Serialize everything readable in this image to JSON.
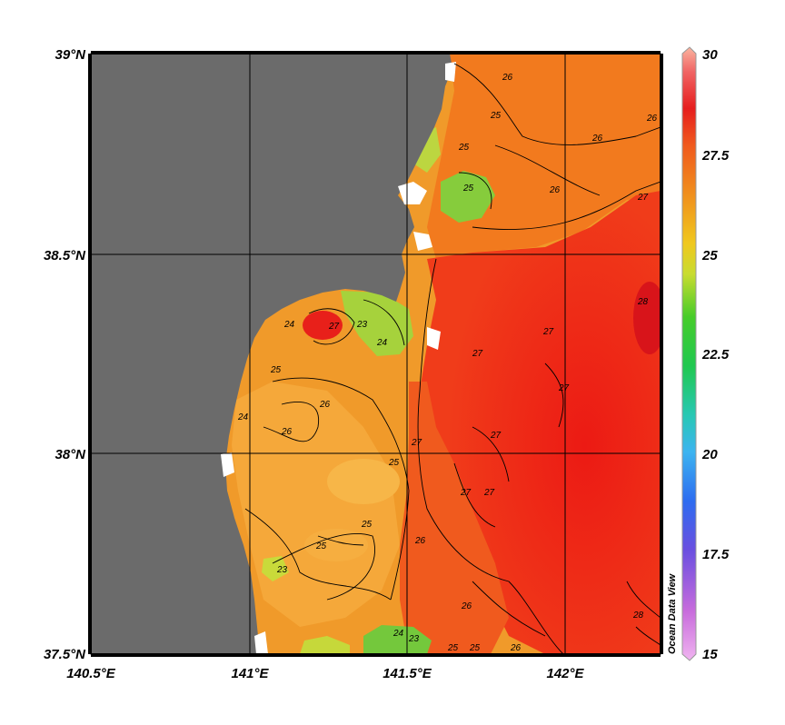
{
  "map": {
    "lat_labels": [
      "39°N",
      "38.5°N",
      "38°N",
      "37.5°N"
    ],
    "lon_labels": [
      "140.5°E",
      "141°E",
      "141.5°E",
      "142°E"
    ],
    "extent": {
      "lon_min": 140.5,
      "lon_max": 142.3,
      "lat_min": 37.5,
      "lat_max": 39.0
    },
    "land_color": "#6b6b6b",
    "missing_color": "#ffffff",
    "contour_labels": [
      "25",
      "26",
      "26",
      "26",
      "27",
      "28",
      "27",
      "27",
      "27",
      "26",
      "25",
      "25",
      "24",
      "23",
      "24",
      "27",
      "26",
      "25",
      "24",
      "23",
      "26",
      "25",
      "25",
      "26",
      "26",
      "27",
      "27",
      "27",
      "27",
      "25",
      "24",
      "23",
      "25",
      "25",
      "26",
      "28"
    ]
  },
  "colorbar": {
    "labels": [
      "30",
      "27.5",
      "25",
      "22.5",
      "20",
      "17.5",
      "15"
    ],
    "min": 15,
    "max": 30,
    "brand": "Ocean Data View"
  }
}
